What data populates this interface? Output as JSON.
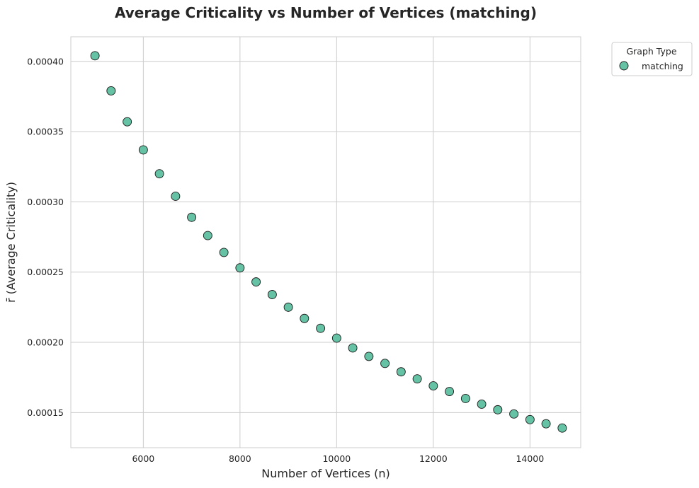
{
  "chart_data": {
    "type": "scatter",
    "title": "Average Criticality vs Number of Vertices (matching)",
    "xlabel": "Number of Vertices (n)",
    "ylabel": "r̄ (Average Criticality)",
    "xlim": [
      4500,
      15050
    ],
    "ylim": [
      0.000125,
      0.0004175
    ],
    "xticks": [
      6000,
      8000,
      10000,
      12000,
      14000
    ],
    "xtick_labels": [
      "6000",
      "8000",
      "10000",
      "12000",
      "14000"
    ],
    "yticks": [
      0.00015,
      0.0002,
      0.00025,
      0.0003,
      0.00035,
      0.0004
    ],
    "ytick_labels": [
      "0.00015",
      "0.00020",
      "0.00025",
      "0.00030",
      "0.00035",
      "0.00040"
    ],
    "grid": true,
    "legend": {
      "title": "Graph Type",
      "placement": "outside-top-right",
      "entries": [
        "matching"
      ]
    },
    "series": [
      {
        "name": "matching",
        "color": "#66c2a5",
        "edge_color": "#1a1a1a",
        "x": [
          5000,
          5333,
          5667,
          6000,
          6333,
          6667,
          7000,
          7333,
          7667,
          8000,
          8333,
          8667,
          9000,
          9333,
          9667,
          10000,
          10333,
          10667,
          11000,
          11333,
          11667,
          12000,
          12333,
          12667,
          13000,
          13333,
          13667,
          14000,
          14333,
          14667
        ],
        "y": [
          0.000404,
          0.000379,
          0.000357,
          0.000337,
          0.00032,
          0.000304,
          0.000289,
          0.000276,
          0.000264,
          0.000253,
          0.000243,
          0.000234,
          0.000225,
          0.000217,
          0.00021,
          0.000203,
          0.000196,
          0.00019,
          0.000185,
          0.000179,
          0.000174,
          0.000169,
          0.000165,
          0.00016,
          0.000156,
          0.000152,
          0.000149,
          0.000145,
          0.000142,
          0.000139
        ]
      }
    ]
  }
}
